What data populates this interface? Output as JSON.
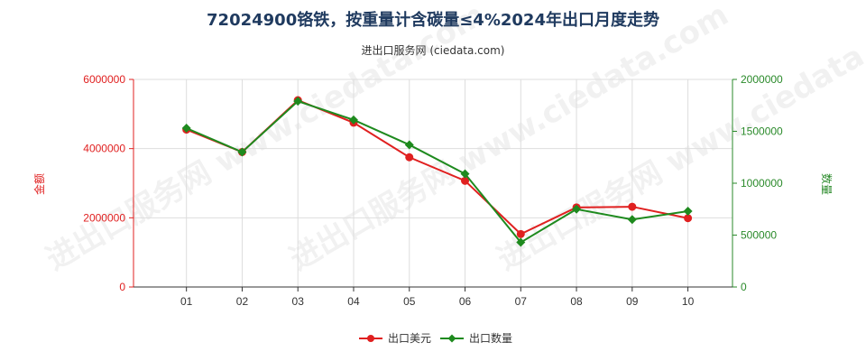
{
  "header": {
    "title": "72024900铬铁，按重量计含碳量≤4%2024年出口月度走势",
    "subtitle": "进出口服务网 (ciedata.com)"
  },
  "watermark": {
    "text": "进出口服务网 www.ciedata.com"
  },
  "colors": {
    "series_amount": "#e02020",
    "series_quantity": "#1e8a1e",
    "left_axis": "#e02020",
    "right_axis": "#2a8a2a",
    "grid": "#dddddd"
  },
  "chart_data": {
    "type": "line",
    "categories": [
      "01",
      "02",
      "03",
      "04",
      "05",
      "06",
      "07",
      "08",
      "09",
      "10"
    ],
    "y_left": {
      "label": "金额",
      "min": 0,
      "max": 6000000,
      "ticks": [
        0,
        2000000,
        4000000,
        6000000
      ]
    },
    "y_right": {
      "label": "数量",
      "min": 0,
      "max": 2000000,
      "ticks": [
        0,
        500000,
        1000000,
        1500000,
        2000000
      ]
    },
    "series": [
      {
        "name": "出口美元",
        "axis": "left",
        "color": "#e02020",
        "values": [
          4550000,
          3900000,
          5400000,
          4750000,
          3750000,
          3070000,
          1530000,
          2300000,
          2320000,
          1990000
        ]
      },
      {
        "name": "出口数量",
        "axis": "right",
        "color": "#1e8a1e",
        "values": [
          1530000,
          1300000,
          1790000,
          1610000,
          1370000,
          1090000,
          430000,
          750000,
          650000,
          730000
        ]
      }
    ],
    "grid": true,
    "legend_position": "bottom-center"
  }
}
